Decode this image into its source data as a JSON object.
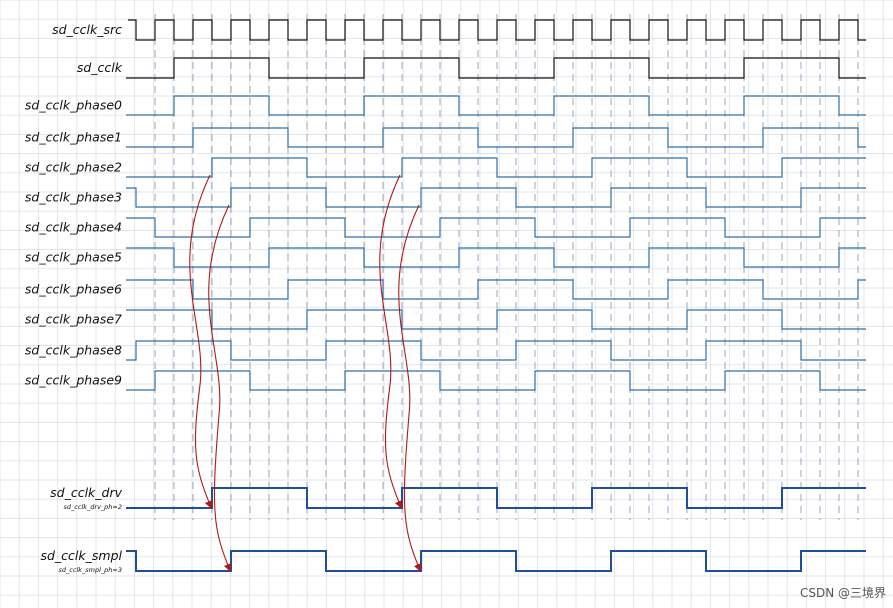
{
  "signals": [
    {
      "name": "sd_cclk_src",
      "kind": "src"
    },
    {
      "name": "sd_cclk",
      "kind": "phase",
      "phase": 0,
      "color": "#111111",
      "width": 1.2
    },
    {
      "name": "sd_cclk_phase0",
      "kind": "phase",
      "phase": 0,
      "color": "#2e6fa6",
      "width": 1.2
    },
    {
      "name": "sd_cclk_phase1",
      "kind": "phase",
      "phase": 1,
      "color": "#2e6fa6",
      "width": 1.2
    },
    {
      "name": "sd_cclk_phase2",
      "kind": "phase",
      "phase": 2,
      "color": "#2e6fa6",
      "width": 1.2
    },
    {
      "name": "sd_cclk_phase3",
      "kind": "phase",
      "phase": 3,
      "color": "#2e6fa6",
      "width": 1.2
    },
    {
      "name": "sd_cclk_phase4",
      "kind": "phase",
      "phase": 4,
      "color": "#2e6fa6",
      "width": 1.2
    },
    {
      "name": "sd_cclk_phase5",
      "kind": "phase",
      "phase": 5,
      "color": "#2e6fa6",
      "width": 1.2
    },
    {
      "name": "sd_cclk_phase6",
      "kind": "phase",
      "phase": 6,
      "color": "#2e6fa6",
      "width": 1.2
    },
    {
      "name": "sd_cclk_phase7",
      "kind": "phase",
      "phase": 7,
      "color": "#2e6fa6",
      "width": 1.2
    },
    {
      "name": "sd_cclk_phase8",
      "kind": "phase",
      "phase": 8,
      "color": "#2e6fa6",
      "width": 1.2
    },
    {
      "name": "sd_cclk_phase9",
      "kind": "phase",
      "phase": 9,
      "color": "#2e6fa6",
      "width": 1.2
    },
    {
      "name": "sd_cclk_drv",
      "kind": "phase",
      "phase": 2,
      "color": "#1f4e9a",
      "width": 2,
      "sublabel": "sd_cclk_drv_ph=2"
    },
    {
      "name": "sd_cclk_smpl",
      "kind": "phase",
      "phase": 3,
      "color": "#1f4e9a",
      "width": 2,
      "sublabel": "sd_cclk_smpl_ph=3"
    }
  ],
  "arrows": [
    {
      "from": "sd_cclk_phase2",
      "to": "sd_cclk_drv",
      "cycle": 0
    },
    {
      "from": "sd_cclk_phase3",
      "to": "sd_cclk_smpl",
      "cycle": 0
    },
    {
      "from": "sd_cclk_phase2",
      "to": "sd_cclk_drv",
      "cycle": 1
    },
    {
      "from": "sd_cclk_phase3",
      "to": "sd_cclk_smpl",
      "cycle": 1
    }
  ],
  "colors": {
    "arrow": "#b01818",
    "grid": "#d7dbe2",
    "guide": "#9aa7ba"
  },
  "watermark": "CSDN @三境界"
}
